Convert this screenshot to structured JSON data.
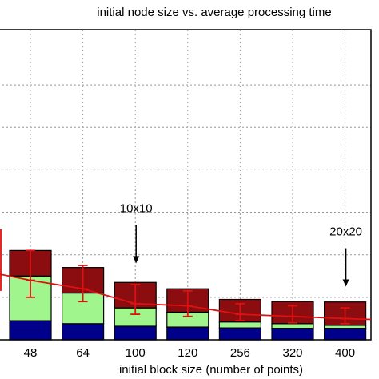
{
  "chart_data": {
    "type": "bar",
    "stacked": true,
    "title": "initial node size vs. average processing time",
    "xlabel": "initial block size (number of points)",
    "ylabel": "",
    "categories": [
      "48",
      "64",
      "100",
      "120",
      "256",
      "320",
      "400"
    ],
    "ylim": [
      0,
      7.3
    ],
    "grid": true,
    "series": [
      {
        "name": "",
        "color": "#00008b",
        "values": [
          0.45,
          0.38,
          0.32,
          0.3,
          0.28,
          0.27,
          0.27
        ]
      },
      {
        "name": "",
        "color": "#a0f58c",
        "values": [
          1.05,
          0.72,
          0.43,
          0.35,
          0.14,
          0.11,
          0.07
        ]
      },
      {
        "name": "",
        "color": "#8b0d10",
        "values": [
          0.6,
          0.6,
          0.6,
          0.55,
          0.53,
          0.52,
          0.55
        ]
      }
    ],
    "line": {
      "color": "#e01010",
      "values": [
        1.4,
        1.2,
        0.85,
        0.8,
        0.6,
        0.55,
        0.5
      ],
      "err_low": [
        1.0,
        0.9,
        0.6,
        0.55,
        0.45,
        0.4,
        0.38
      ],
      "err_high": [
        2.1,
        1.75,
        1.3,
        1.15,
        0.85,
        0.8,
        0.75
      ],
      "extra_left": [
        1.55,
        2.6
      ]
    },
    "annotations": [
      {
        "text": "10x10",
        "category": "100",
        "arrow_to": 1.8
      },
      {
        "text": "20x20",
        "category": "400",
        "arrow_to": 1.25
      }
    ]
  }
}
